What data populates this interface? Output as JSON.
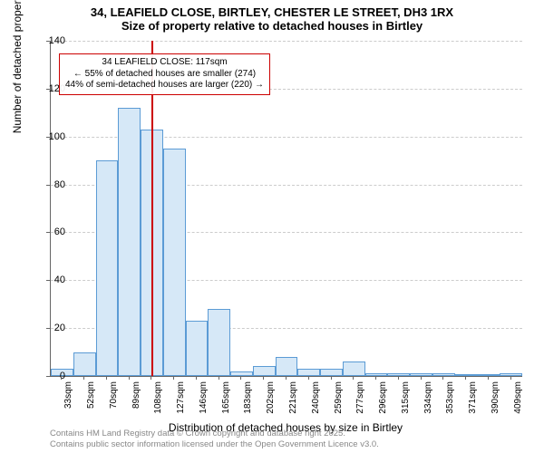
{
  "title": {
    "line1": "34, LEAFIELD CLOSE, BIRTLEY, CHESTER LE STREET, DH3 1RX",
    "line2": "Size of property relative to detached houses in Birtley"
  },
  "chart": {
    "type": "histogram",
    "ylabel": "Number of detached properties",
    "xlabel": "Distribution of detached houses by size in Birtley",
    "ylim": [
      0,
      140
    ],
    "ytick_step": 20,
    "yticks": [
      0,
      20,
      40,
      60,
      80,
      100,
      120,
      140
    ],
    "xticks": [
      "33sqm",
      "52sqm",
      "70sqm",
      "89sqm",
      "108sqm",
      "127sqm",
      "146sqm",
      "165sqm",
      "183sqm",
      "202sqm",
      "221sqm",
      "240sqm",
      "259sqm",
      "277sqm",
      "296sqm",
      "315sqm",
      "334sqm",
      "353sqm",
      "371sqm",
      "390sqm",
      "409sqm"
    ],
    "bars": [
      3,
      10,
      90,
      112,
      103,
      95,
      23,
      28,
      2,
      4,
      8,
      3,
      3,
      6,
      1,
      1,
      1,
      1,
      0.5,
      0.5,
      1
    ],
    "bar_fill": "#d6e8f7",
    "bar_stroke": "#5b9bd5",
    "background_color": "#ffffff",
    "grid_color": "#cccccc",
    "axis_color": "#666666",
    "label_fontsize": 12,
    "tick_fontsize": 10,
    "title_fontsize": 13
  },
  "marker": {
    "position_index": 4.5,
    "color": "#cc0000",
    "annotation": {
      "line1": "34 LEAFIELD CLOSE: 117sqm",
      "line2": "← 55% of detached houses are smaller (274)",
      "line3": "44% of semi-detached houses are larger (220) →",
      "border_color": "#cc0000"
    }
  },
  "footer": {
    "line1": "Contains HM Land Registry data © Crown copyright and database right 2025.",
    "line2": "Contains public sector information licensed under the Open Government Licence v3.0."
  }
}
